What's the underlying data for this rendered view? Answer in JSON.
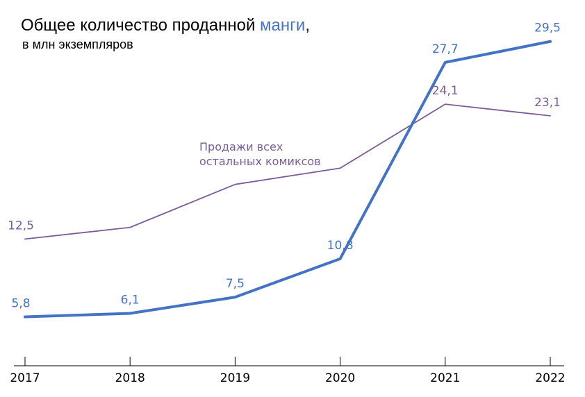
{
  "chart_data": {
    "type": "line",
    "title_parts": [
      "Общее количество проданной ",
      "манги",
      ","
    ],
    "subtitle": "в млн экземпляров",
    "categories": [
      "2017",
      "2018",
      "2019",
      "2020",
      "2021",
      "2022"
    ],
    "series": [
      {
        "name": "манги",
        "color": "#4472C4",
        "values": [
          5.8,
          6.1,
          7.5,
          10.8,
          27.7,
          29.5
        ],
        "labels": [
          "5,8",
          "6,1",
          "7,5",
          "10,8",
          "27,7",
          "29,5"
        ]
      },
      {
        "name_lines": [
          "Продажи всех",
          "остальных комиксов"
        ],
        "color": "#7B5C98",
        "values": [
          12.5,
          13.5,
          17.2,
          18.6,
          24.1,
          23.1
        ],
        "labels": [
          "12,5",
          "",
          "",
          "",
          "24,1",
          "23,1"
        ]
      }
    ],
    "ylim": [
      4.4,
      30.5
    ],
    "grid": false,
    "text_color": "#000000"
  }
}
